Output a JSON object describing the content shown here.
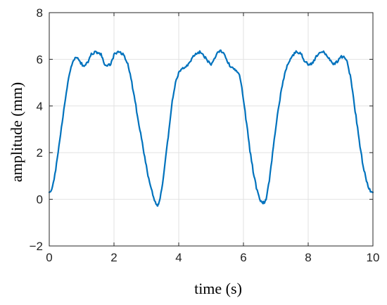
{
  "colors": {
    "series": "#0072BD",
    "grid": "#e2e2e2",
    "axis": "#262626"
  },
  "chart_data": {
    "type": "line",
    "title": "",
    "xlabel": "time (s)",
    "ylabel": "amplitude (mm)",
    "xlim": [
      0,
      10
    ],
    "ylim": [
      -2,
      8
    ],
    "xticks": [
      0,
      2,
      4,
      6,
      8,
      10
    ],
    "yticks": [
      -2,
      0,
      2,
      4,
      6,
      8
    ],
    "xtick_labels": [
      "0",
      "2",
      "4",
      "6",
      "8",
      "10"
    ],
    "ytick_labels": [
      "−2",
      "0",
      "2",
      "4",
      "6",
      "8"
    ],
    "grid": true,
    "series": [
      {
        "color": "#0072BD",
        "x": [
          0,
          0.1,
          0.2,
          0.3,
          0.4,
          0.5,
          0.6,
          0.7,
          0.8,
          0.9,
          1.0,
          1.1,
          1.2,
          1.3,
          1.4,
          1.5,
          1.6,
          1.7,
          1.8,
          1.9,
          2.0,
          2.1,
          2.2,
          2.3,
          2.4,
          2.5,
          2.6,
          2.7,
          2.8,
          2.9,
          3.0,
          3.1,
          3.2,
          3.3,
          3.35,
          3.4,
          3.5,
          3.6,
          3.7,
          3.8,
          3.9,
          4.0,
          4.1,
          4.2,
          4.3,
          4.4,
          4.5,
          4.6,
          4.7,
          4.8,
          4.9,
          5.0,
          5.1,
          5.2,
          5.3,
          5.4,
          5.5,
          5.6,
          5.7,
          5.8,
          5.9,
          6.0,
          6.1,
          6.2,
          6.3,
          6.4,
          6.5,
          6.6,
          6.65,
          6.7,
          6.8,
          6.9,
          7.0,
          7.1,
          7.2,
          7.3,
          7.4,
          7.5,
          7.6,
          7.7,
          7.8,
          7.9,
          8.0,
          8.1,
          8.2,
          8.3,
          8.4,
          8.5,
          8.6,
          8.7,
          8.8,
          8.9,
          9.0,
          9.1,
          9.2,
          9.3,
          9.4,
          9.5,
          9.6,
          9.7,
          9.8,
          9.9,
          10.0
        ],
        "y": [
          0.3,
          0.5,
          1.3,
          2.3,
          3.3,
          4.3,
          5.2,
          5.8,
          6.1,
          6.0,
          5.8,
          5.7,
          5.9,
          6.2,
          6.3,
          6.3,
          6.2,
          5.8,
          5.7,
          5.8,
          6.2,
          6.3,
          6.3,
          6.2,
          5.9,
          5.4,
          4.6,
          3.8,
          3.0,
          2.2,
          1.4,
          0.7,
          0.2,
          -0.2,
          -0.25,
          -0.1,
          0.6,
          1.8,
          3.0,
          4.2,
          5.0,
          5.4,
          5.6,
          5.7,
          5.8,
          6.0,
          6.2,
          6.3,
          6.3,
          6.1,
          5.9,
          5.8,
          6.0,
          6.3,
          6.4,
          6.2,
          5.9,
          5.7,
          5.6,
          5.5,
          5.2,
          4.3,
          3.2,
          2.1,
          1.2,
          0.5,
          0.0,
          -0.15,
          -0.15,
          0.0,
          0.8,
          2.0,
          3.1,
          4.1,
          4.9,
          5.5,
          5.9,
          6.1,
          6.3,
          6.3,
          6.2,
          5.9,
          5.8,
          5.8,
          6.0,
          6.2,
          6.3,
          6.3,
          6.1,
          5.9,
          5.8,
          5.9,
          6.1,
          6.1,
          5.9,
          5.3,
          4.3,
          3.3,
          2.3,
          1.4,
          0.8,
          0.4,
          0.3
        ]
      }
    ]
  }
}
